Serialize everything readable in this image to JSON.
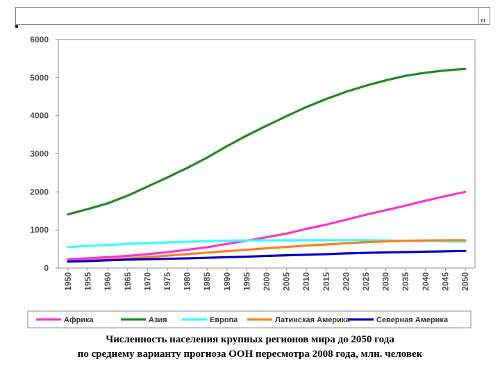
{
  "caption": {
    "line1": "Численность населения крупных регионов мира до 2050 года",
    "line2": "по среднему варианту прогноза ООН пересмотра 2008 года, млн. человек"
  },
  "chart_data": {
    "type": "line",
    "title": "Численность населения крупных регионов мира до 2050 года по среднему варианту прогноза ООН пересмотра 2008 года, млн. человек",
    "xlabel": "",
    "ylabel": "",
    "ylim": [
      0,
      6000
    ],
    "yticks": [
      "0",
      "1000",
      "2000",
      "3000",
      "4000",
      "5000",
      "6000"
    ],
    "categories": [
      "1950",
      "1955",
      "1960",
      "1965",
      "1970",
      "1975",
      "1980",
      "1985",
      "1990",
      "1995",
      "2000",
      "2005",
      "2010",
      "2015",
      "2020",
      "2025",
      "2030",
      "2035",
      "2040",
      "2045",
      "2050"
    ],
    "grid": false,
    "legend_position": "bottom",
    "series": [
      {
        "name": "Африка",
        "color": "#ff33cc",
        "values": [
          230,
          255,
          285,
          320,
          365,
          415,
          480,
          545,
          635,
          720,
          810,
          905,
          1030,
          1140,
          1270,
          1400,
          1520,
          1640,
          1770,
          1890,
          2000
        ]
      },
      {
        "name": "Азия",
        "color": "#1f8a1f",
        "values": [
          1410,
          1550,
          1700,
          1900,
          2140,
          2380,
          2630,
          2900,
          3200,
          3480,
          3740,
          3990,
          4230,
          4440,
          4630,
          4790,
          4930,
          5050,
          5130,
          5190,
          5230
        ]
      },
      {
        "name": "Европа",
        "color": "#33ffff",
        "values": [
          550,
          580,
          605,
          635,
          655,
          675,
          690,
          705,
          720,
          727,
          728,
          729,
          732,
          733,
          733,
          731,
          725,
          718,
          711,
          704,
          695
        ]
      },
      {
        "name": "Латинская Америка",
        "color": "#ff7f1f",
        "values": [
          170,
          195,
          220,
          250,
          290,
          325,
          365,
          405,
          445,
          480,
          520,
          555,
          590,
          620,
          650,
          680,
          700,
          715,
          725,
          730,
          730
        ]
      },
      {
        "name": "Северная Америка",
        "color": "#0000cc",
        "values": [
          170,
          185,
          205,
          220,
          230,
          245,
          255,
          270,
          285,
          300,
          320,
          335,
          350,
          365,
          385,
          400,
          410,
          420,
          430,
          440,
          450
        ]
      }
    ]
  }
}
